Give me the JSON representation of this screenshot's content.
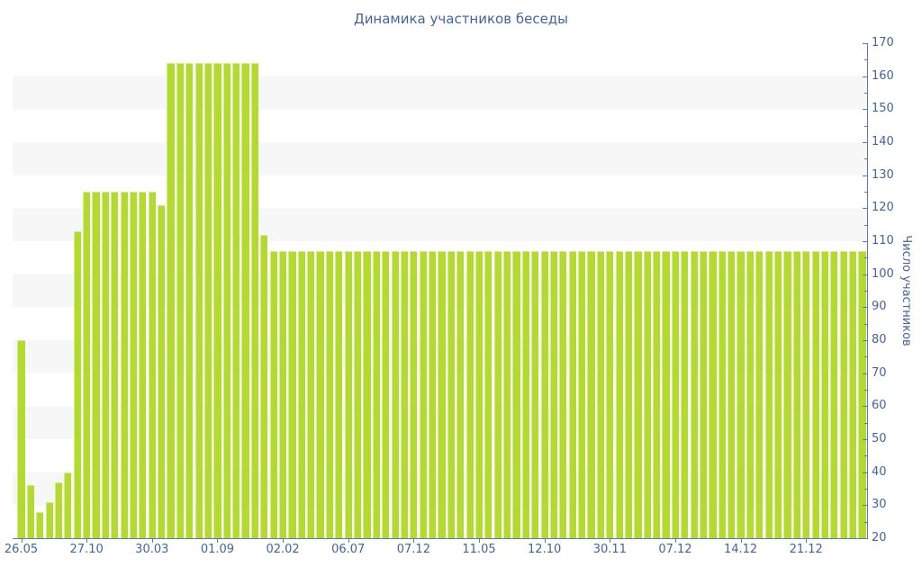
{
  "chart_data": {
    "type": "bar",
    "title": "Динамика участников беседы",
    "ylabel": "Число участников",
    "xlabel": "",
    "ylim": [
      20,
      170
    ],
    "y_tick_step": 10,
    "y_minor_tick_step": 5,
    "legend": "none",
    "grid": "alternating horizontal 10-unit stripes",
    "x_tick_labels": [
      "26.05",
      "27.10",
      "30.03",
      "01.09",
      "02.02",
      "06.07",
      "07.12",
      "11.05",
      "12.10",
      "30.11",
      "07.12",
      "14.12",
      "21.12"
    ],
    "x_tick_bar_indices": [
      0,
      7,
      14,
      21,
      28,
      35,
      42,
      49,
      56,
      63,
      70,
      77,
      84
    ],
    "values": [
      80,
      36,
      28,
      31,
      37,
      40,
      113,
      125,
      125,
      125,
      125,
      125,
      125,
      125,
      125,
      121,
      164,
      164,
      164,
      164,
      164,
      164,
      164,
      164,
      164,
      164,
      112,
      107,
      107,
      107,
      107,
      107,
      107,
      107,
      107,
      107,
      107,
      107,
      107,
      107,
      107,
      107,
      107,
      107,
      107,
      107,
      107,
      107,
      107,
      107,
      107,
      107,
      107,
      107,
      107,
      107,
      107,
      107,
      107,
      107,
      107,
      107,
      107,
      107,
      107,
      107,
      107,
      107,
      107,
      107,
      107,
      107,
      107,
      107,
      107,
      107,
      107,
      107,
      107,
      107,
      107,
      107,
      107,
      107,
      107,
      107,
      107,
      107,
      107,
      107,
      107
    ],
    "colors": {
      "bar": "#b3da2e",
      "bar_highlight": "#d6ec8c",
      "axis_line": "#5a78b4",
      "text": "#44639d",
      "stripe": "#f7f7f7",
      "background": "#ffffff"
    }
  }
}
